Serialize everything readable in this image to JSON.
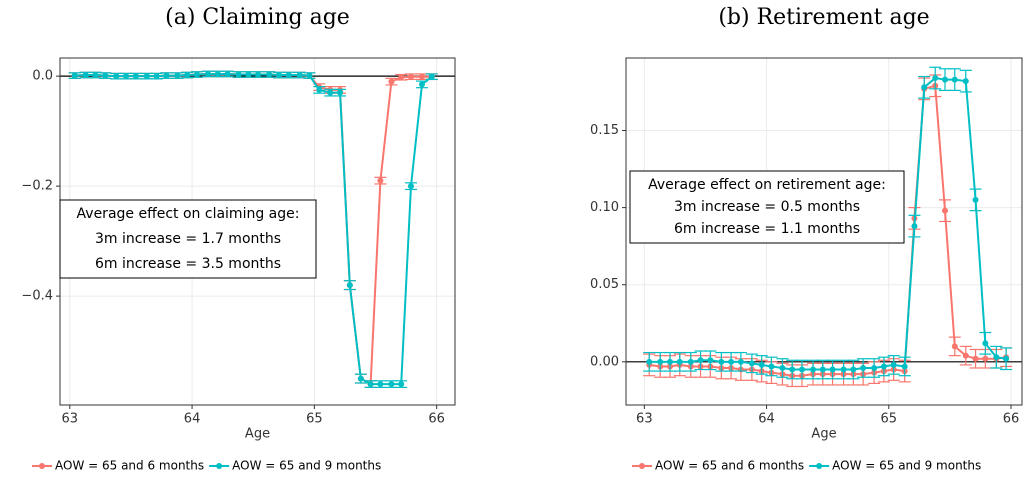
{
  "chart_data": [
    {
      "type": "line",
      "title": "(a) Claiming age",
      "x_label": "Age",
      "annotation": [
        "Average effect on claiming age:",
        "3m increase = 1.7 months",
        "6m increase = 3.5 months"
      ],
      "x": [
        63.04,
        63.13,
        63.21,
        63.29,
        63.38,
        63.46,
        63.54,
        63.63,
        63.71,
        63.79,
        63.88,
        63.96,
        64.04,
        64.13,
        64.21,
        64.29,
        64.38,
        64.46,
        64.54,
        64.63,
        64.71,
        64.79,
        64.88,
        64.96,
        65.04,
        65.13,
        65.21,
        65.29,
        65.38,
        65.46,
        65.54,
        65.63,
        65.71,
        65.79,
        65.88,
        65.96
      ],
      "series": [
        {
          "name": "AOW = 65 and 6 months",
          "color": "#f8766d",
          "values": [
            0.001,
            0.002,
            0.002,
            0.001,
            0.0,
            0.0,
            0.0,
            0.0,
            0.0,
            0.001,
            0.001,
            0.002,
            0.003,
            0.004,
            0.004,
            0.004,
            0.003,
            0.003,
            0.003,
            0.003,
            0.002,
            0.002,
            0.002,
            0.001,
            -0.02,
            -0.025,
            -0.025,
            -0.38,
            -0.55,
            -0.56,
            -0.19,
            -0.01,
            -0.002,
            -0.001,
            -0.001,
            -0.001
          ],
          "errors": [
            0.005,
            0.005,
            0.005,
            0.005,
            0.005,
            0.005,
            0.005,
            0.005,
            0.005,
            0.005,
            0.005,
            0.005,
            0.005,
            0.005,
            0.005,
            0.005,
            0.005,
            0.005,
            0.005,
            0.005,
            0.005,
            0.005,
            0.005,
            0.005,
            0.006,
            0.006,
            0.006,
            0.008,
            0.008,
            0.006,
            0.006,
            0.006,
            0.005,
            0.005,
            0.005,
            0.005
          ]
        },
        {
          "name": "AOW = 65 and 9 months",
          "color": "#00bfc4",
          "values": [
            0.001,
            0.002,
            0.002,
            0.001,
            0.0,
            0.0,
            0.0,
            0.0,
            0.0,
            0.001,
            0.001,
            0.002,
            0.003,
            0.004,
            0.004,
            0.004,
            0.003,
            0.003,
            0.003,
            0.003,
            0.002,
            0.002,
            0.002,
            0.001,
            -0.025,
            -0.03,
            -0.03,
            -0.38,
            -0.55,
            -0.56,
            -0.56,
            -0.56,
            -0.56,
            -0.2,
            -0.015,
            -0.001
          ],
          "errors": [
            0.005,
            0.005,
            0.005,
            0.005,
            0.005,
            0.005,
            0.005,
            0.005,
            0.005,
            0.005,
            0.005,
            0.005,
            0.005,
            0.005,
            0.005,
            0.005,
            0.005,
            0.005,
            0.005,
            0.005,
            0.005,
            0.005,
            0.005,
            0.005,
            0.006,
            0.006,
            0.006,
            0.008,
            0.008,
            0.006,
            0.006,
            0.006,
            0.006,
            0.006,
            0.006,
            0.005
          ]
        }
      ],
      "xlim": [
        62.92,
        66.15
      ],
      "xticks": [
        63,
        64,
        65,
        66
      ],
      "ylim": [
        -0.598,
        0.033
      ],
      "yticks": [
        {
          "value": 0,
          "label": "0.0"
        },
        {
          "value": -0.2,
          "label": "−0.2"
        },
        {
          "value": -0.4,
          "label": "−0.4"
        }
      ],
      "hline": 0,
      "grid": true,
      "legend": "bottom"
    },
    {
      "type": "line",
      "title": "(b) Retirement age",
      "x_label": "Age",
      "annotation": [
        "Average effect on retirement age:",
        "3m increase = 0.5 months",
        "6m increase = 1.1 months"
      ],
      "x": [
        63.04,
        63.13,
        63.21,
        63.29,
        63.38,
        63.46,
        63.54,
        63.63,
        63.71,
        63.79,
        63.88,
        63.96,
        64.04,
        64.13,
        64.21,
        64.29,
        64.38,
        64.46,
        64.54,
        64.63,
        64.71,
        64.79,
        64.88,
        64.96,
        65.04,
        65.13,
        65.21,
        65.29,
        65.38,
        65.46,
        65.54,
        65.63,
        65.71,
        65.79,
        65.88,
        65.96
      ],
      "series": [
        {
          "name": "AOW = 65 and 6 months",
          "color": "#f8766d",
          "values": [
            -0.002,
            -0.003,
            -0.003,
            -0.002,
            -0.003,
            -0.003,
            -0.003,
            -0.004,
            -0.004,
            -0.005,
            -0.005,
            -0.006,
            -0.007,
            -0.008,
            -0.009,
            -0.009,
            -0.008,
            -0.008,
            -0.008,
            -0.008,
            -0.008,
            -0.008,
            -0.007,
            -0.006,
            -0.005,
            -0.006,
            0.093,
            0.177,
            0.179,
            0.098,
            0.01,
            0.004,
            0.002,
            0.002,
            0.002,
            0.003
          ],
          "errors": [
            0.007,
            0.007,
            0.007,
            0.007,
            0.007,
            0.007,
            0.007,
            0.007,
            0.007,
            0.007,
            0.007,
            0.007,
            0.007,
            0.007,
            0.007,
            0.007,
            0.007,
            0.007,
            0.007,
            0.007,
            0.007,
            0.007,
            0.007,
            0.007,
            0.007,
            0.007,
            0.007,
            0.007,
            0.007,
            0.007,
            0.006,
            0.006,
            0.006,
            0.006,
            0.006,
            0.006
          ]
        },
        {
          "name": "AOW = 65 and 9 months",
          "color": "#00bfc4",
          "values": [
            0.0,
            0.0,
            0.0,
            0.0,
            0.0,
            0.001,
            0.001,
            0.0,
            0.0,
            0.0,
            -0.001,
            -0.002,
            -0.003,
            -0.004,
            -0.005,
            -0.005,
            -0.005,
            -0.005,
            -0.005,
            -0.005,
            -0.005,
            -0.004,
            -0.004,
            -0.003,
            -0.002,
            -0.003,
            0.088,
            0.178,
            0.184,
            0.183,
            0.183,
            0.182,
            0.105,
            0.012,
            0.003,
            0.002
          ],
          "errors": [
            0.006,
            0.006,
            0.006,
            0.006,
            0.006,
            0.006,
            0.006,
            0.006,
            0.006,
            0.006,
            0.006,
            0.006,
            0.006,
            0.006,
            0.006,
            0.006,
            0.006,
            0.006,
            0.006,
            0.006,
            0.006,
            0.006,
            0.006,
            0.006,
            0.006,
            0.006,
            0.007,
            0.007,
            0.007,
            0.007,
            0.007,
            0.007,
            0.007,
            0.007,
            0.007,
            0.007
          ]
        }
      ],
      "xlim": [
        62.85,
        66.09
      ],
      "xticks": [
        63,
        64,
        65,
        66
      ],
      "ylim": [
        -0.028,
        0.197
      ],
      "yticks": [
        {
          "value": 0,
          "label": "0.00"
        },
        {
          "value": 0.05,
          "label": "0.05"
        },
        {
          "value": 0.1,
          "label": "0.10"
        },
        {
          "value": 0.15,
          "label": "0.15"
        }
      ],
      "hline": 0,
      "grid": true,
      "legend": "bottom"
    }
  ]
}
